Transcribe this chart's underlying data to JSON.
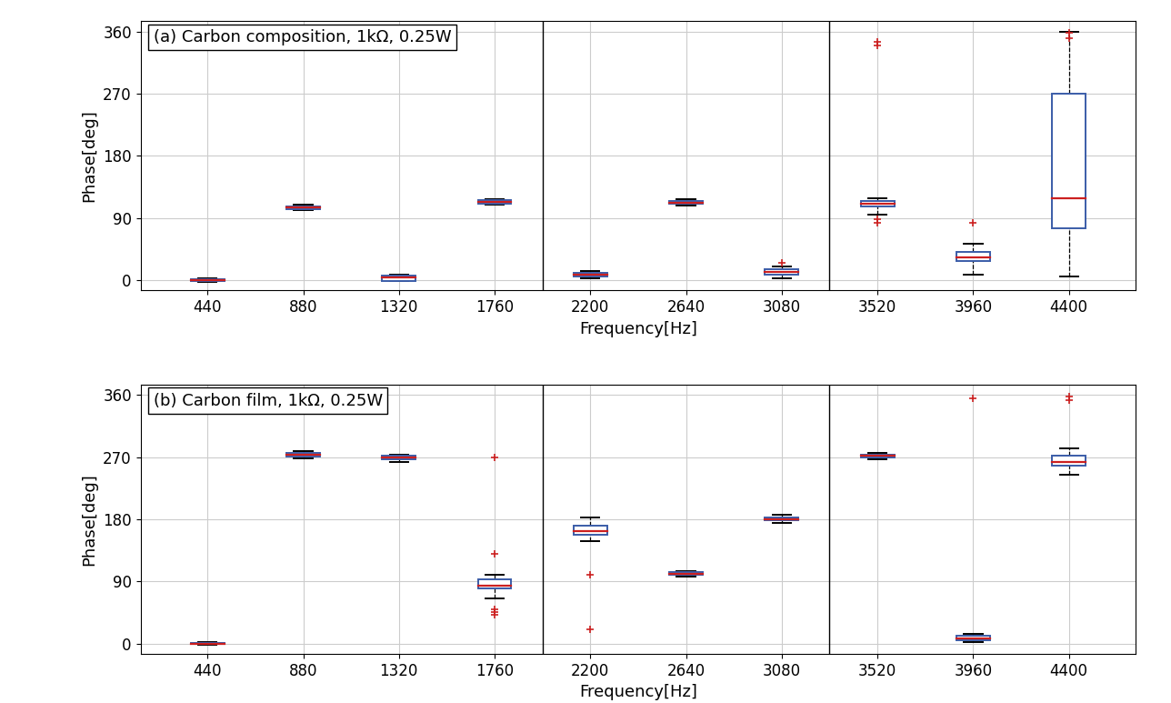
{
  "title_a": "(a) Carbon composition, 1kΩ, 0.25W",
  "title_b": "(b) Carbon film, 1kΩ, 0.25W",
  "xlabel": "Frequency[Hz]",
  "ylabel": "Phase[deg]",
  "xtick_labels": [
    "440",
    "880",
    "1320",
    "1760",
    "2200",
    "2640",
    "3080",
    "3520",
    "3960",
    "4400"
  ],
  "xtick_values": [
    440,
    880,
    1320,
    1760,
    2200,
    2640,
    3080,
    3520,
    3960,
    4400
  ],
  "ylim": [
    -15,
    375
  ],
  "yticks": [
    0,
    90,
    180,
    270,
    360
  ],
  "box_color": "#3a5ca8",
  "median_color": "#cc2020",
  "whisker_color": "#000000",
  "flier_color": "#cc2020",
  "box_width": 0.35,
  "cap_ratio": 0.55,
  "data_a": [
    {
      "q1": -1.5,
      "q2": -0.5,
      "q3": 0.5,
      "whislo": -3,
      "whishi": 2,
      "fliers": []
    },
    {
      "q1": 103,
      "q2": 105,
      "q3": 107,
      "whislo": 101,
      "whishi": 109,
      "fliers": []
    },
    {
      "q1": -1,
      "q2": 4,
      "q3": 6,
      "whislo": -2,
      "whishi": 8,
      "fliers": []
    },
    {
      "q1": 111,
      "q2": 113,
      "q3": 116,
      "whislo": 109,
      "whishi": 117,
      "fliers": []
    },
    {
      "q1": 5,
      "q2": 8,
      "q3": 10,
      "whislo": 2,
      "whishi": 13,
      "fliers": []
    },
    {
      "q1": 110,
      "q2": 112,
      "q3": 115,
      "whislo": 108,
      "whishi": 117,
      "fliers": []
    },
    {
      "q1": 8,
      "q2": 12,
      "q3": 16,
      "whislo": 3,
      "whishi": 20,
      "fliers": [
        25
      ]
    },
    {
      "q1": 107,
      "q2": 111,
      "q3": 114,
      "whislo": 95,
      "whishi": 118,
      "fliers": [
        340,
        345,
        88,
        83
      ]
    },
    {
      "q1": 28,
      "q2": 33,
      "q3": 40,
      "whislo": 8,
      "whishi": 52,
      "fliers": [
        83
      ]
    },
    {
      "q1": 75,
      "q2": 118,
      "q3": 270,
      "whislo": 5,
      "whishi": 360,
      "fliers": [
        350,
        358
      ]
    }
  ],
  "data_b": [
    {
      "q1": -1,
      "q2": 0,
      "q3": 1,
      "whislo": -2,
      "whishi": 2,
      "fliers": []
    },
    {
      "q1": 271,
      "q2": 273,
      "q3": 276,
      "whislo": 268,
      "whishi": 278,
      "fliers": []
    },
    {
      "q1": 267,
      "q2": 269,
      "q3": 272,
      "whislo": 263,
      "whishi": 274,
      "fliers": []
    },
    {
      "q1": 80,
      "q2": 84,
      "q3": 93,
      "whislo": 65,
      "whishi": 100,
      "fliers": [
        130,
        270,
        50,
        45,
        42
      ]
    },
    {
      "q1": 157,
      "q2": 163,
      "q3": 170,
      "whislo": 148,
      "whishi": 183,
      "fliers": [
        20,
        100
      ]
    },
    {
      "q1": 99,
      "q2": 101,
      "q3": 103,
      "whislo": 97,
      "whishi": 105,
      "fliers": []
    },
    {
      "q1": 178,
      "q2": 180,
      "q3": 183,
      "whislo": 175,
      "whishi": 186,
      "fliers": []
    },
    {
      "q1": 270,
      "q2": 272,
      "q3": 274,
      "whislo": 267,
      "whishi": 276,
      "fliers": []
    },
    {
      "q1": 5,
      "q2": 7,
      "q3": 11,
      "whislo": 2,
      "whishi": 14,
      "fliers": [
        355
      ]
    },
    {
      "q1": 257,
      "q2": 263,
      "q3": 272,
      "whislo": 245,
      "whishi": 282,
      "fliers": [
        352,
        358
      ]
    }
  ],
  "vline_x": [
    4.5,
    7.5
  ],
  "grid_color": "#cccccc",
  "fig_width": 12.88,
  "fig_height": 7.73,
  "dpi": 100
}
